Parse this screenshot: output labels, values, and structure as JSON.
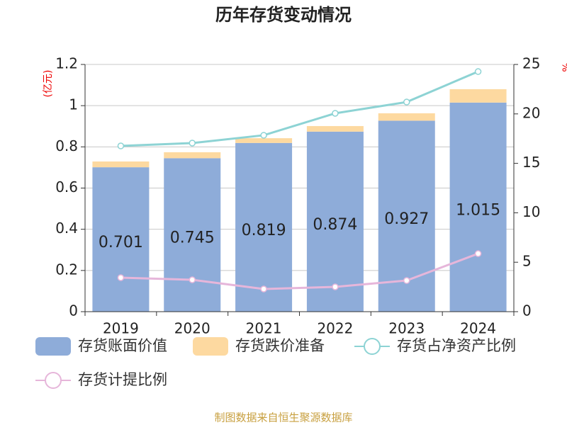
{
  "chart_data": {
    "type": "bar",
    "title": "历年存货变动情况",
    "ylabel": "(亿元)",
    "y2label": "%",
    "source": "制图数据来自恒生聚源数据库",
    "categories": [
      "2019",
      "2020",
      "2021",
      "2022",
      "2023",
      "2024"
    ],
    "ylim": [
      0,
      1.2
    ],
    "yticks": [
      0,
      0.2,
      0.4,
      0.6,
      0.8,
      1,
      1.2
    ],
    "y2lim": [
      0,
      25
    ],
    "y2ticks": [
      0,
      5,
      10,
      15,
      20,
      25
    ],
    "grid": true,
    "series": [
      {
        "name": "存货账面价值",
        "type": "bar",
        "color": "#8eacd9",
        "values": [
          0.701,
          0.745,
          0.819,
          0.874,
          0.927,
          1.015
        ]
      },
      {
        "name": "存货跌价准备",
        "type": "bar",
        "color": "#fdd9a0",
        "values": [
          0.028,
          0.029,
          0.023,
          0.027,
          0.036,
          0.065
        ]
      },
      {
        "name": "存货占净资产比例",
        "type": "line",
        "axis": "y2",
        "color": "#8dd3d4",
        "values": [
          16.76,
          17.05,
          17.84,
          20.06,
          21.2,
          24.28
        ]
      },
      {
        "name": "存货计提比例",
        "type": "line",
        "axis": "y2",
        "color": "#e6b6da",
        "values": [
          3.44,
          3.22,
          2.29,
          2.51,
          3.15,
          5.87
        ]
      }
    ]
  }
}
